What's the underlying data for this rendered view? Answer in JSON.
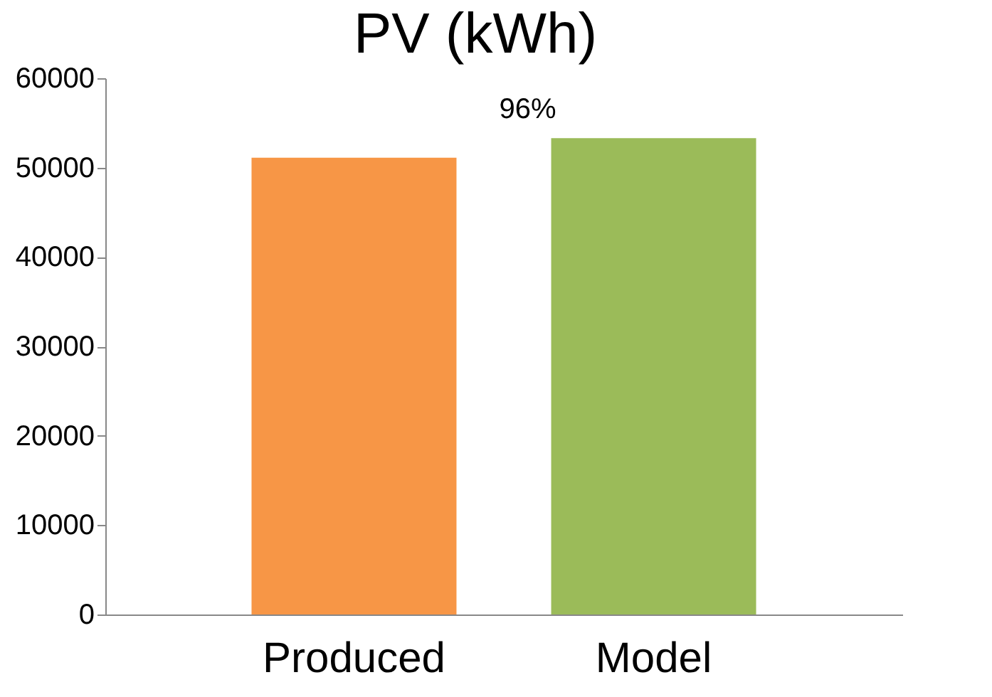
{
  "chart_data": {
    "type": "bar",
    "title": "PV (kWh)",
    "categories": [
      "Produced",
      "Model"
    ],
    "values": [
      51100,
      53300
    ],
    "colors": [
      "#f79646",
      "#9bbb59"
    ],
    "ylim": [
      0,
      60000
    ],
    "yticks": [
      0,
      10000,
      20000,
      30000,
      40000,
      50000,
      60000
    ],
    "grid": false,
    "annotations": [
      "96%"
    ]
  }
}
